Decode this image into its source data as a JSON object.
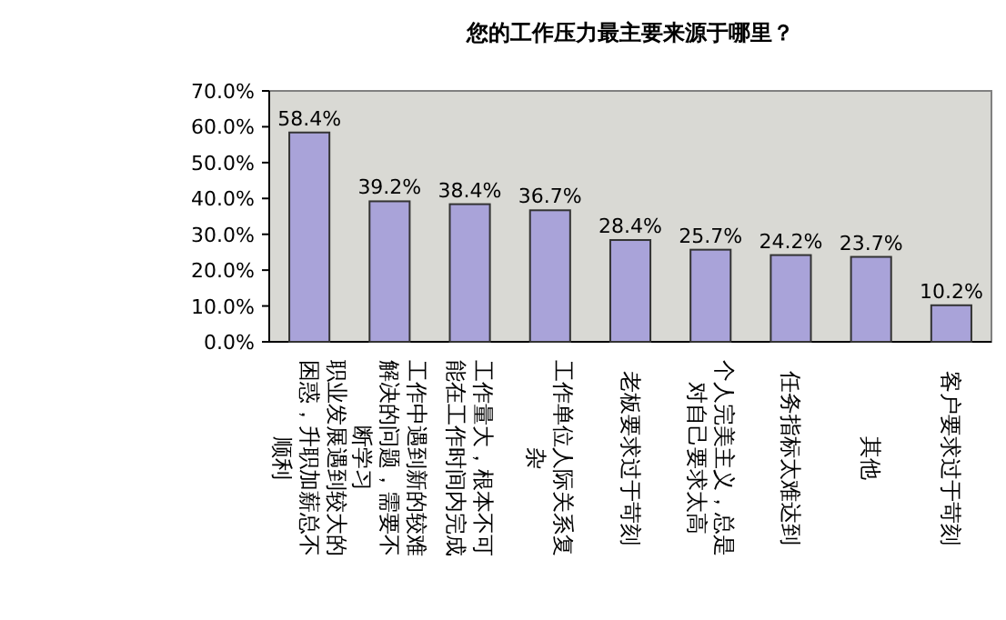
{
  "chart_data": {
    "type": "bar",
    "title": "您的工作压力最主要来源于哪里？",
    "categories": [
      "职业发展遇到较大的困惑，升职加薪总不顺利",
      "工作中遇到新的较难解决的问题，需要不断学习",
      "工作量大，根本不可能在工作时间内完成",
      "工作单位人际关系复杂",
      "老板要求过于苛刻",
      "个人完美主义，总是对自己要求太高",
      "任务指标太难达到",
      "其他",
      "客户要求过于苛刻"
    ],
    "values": [
      58.4,
      39.2,
      38.4,
      36.7,
      28.4,
      25.7,
      24.2,
      23.7,
      10.2
    ],
    "value_labels": [
      "58.4%",
      "39.2%",
      "38.4%",
      "36.7%",
      "28.4%",
      "25.7%",
      "24.2%",
      "23.7%",
      "10.2%"
    ],
    "color": "#a9a3d9",
    "ylim": [
      0,
      70
    ],
    "yticks": [
      {
        "value": 0,
        "label": "0.0%"
      },
      {
        "value": 10,
        "label": "10.0%"
      },
      {
        "value": 20,
        "label": "20.0%"
      },
      {
        "value": 30,
        "label": "30.0%"
      },
      {
        "value": 40,
        "label": "40.0%"
      },
      {
        "value": 50,
        "label": "50.0%"
      },
      {
        "value": 60,
        "label": "60.0%"
      },
      {
        "value": 70,
        "label": "70.0%"
      }
    ],
    "grid": false
  }
}
